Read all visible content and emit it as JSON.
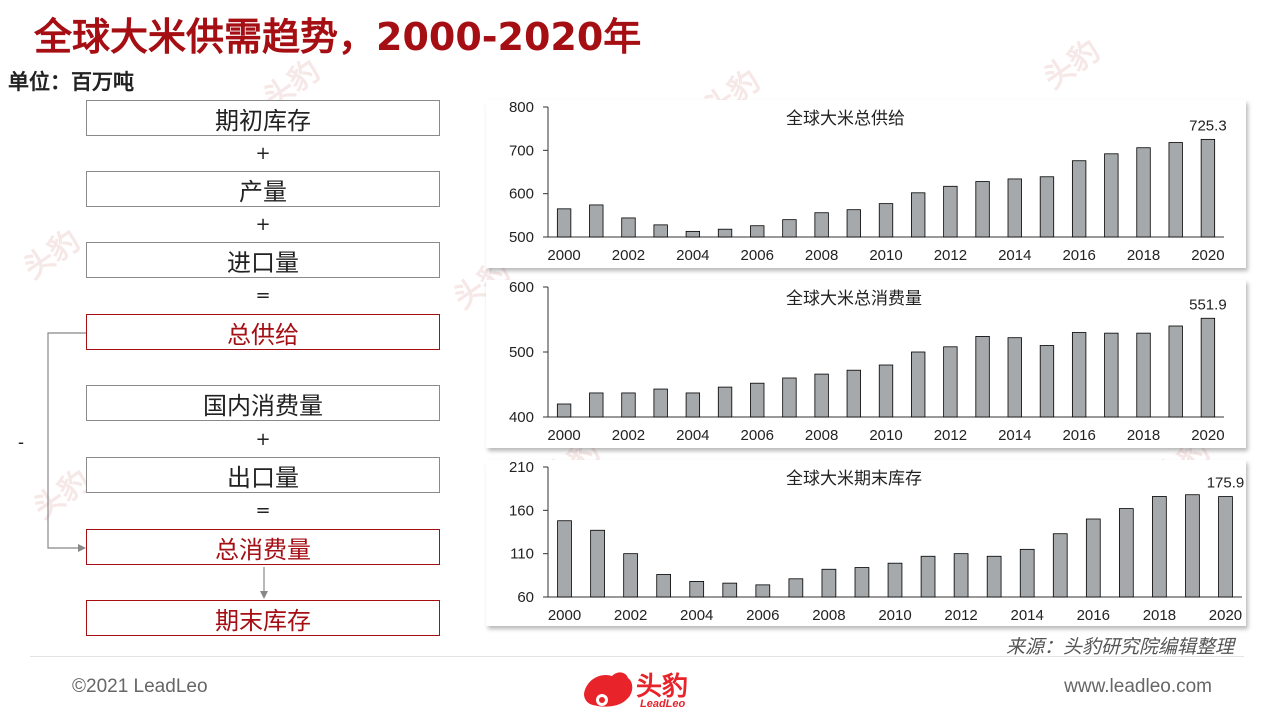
{
  "title": "全球大米供需趋势，2000-2020年",
  "unit": "单位：百万吨",
  "flow": {
    "boxes": [
      "期初库存",
      "产量",
      "进口量",
      "总供给",
      "国内消费量",
      "出口量",
      "总消费量",
      "期末库存"
    ],
    "plus": "+",
    "equals": "=",
    "minus": "-"
  },
  "source": "来源：头豹研究院编辑整理",
  "footer": {
    "copyright": "©2021 LeadLeo",
    "website": "www.leadleo.com",
    "logo_text": "头豹",
    "logo_sub": "LeadLeo",
    "watermark": "头豹"
  },
  "colors": {
    "accent": "#a50f14",
    "bar": "#a6a9ab",
    "bar_stroke": "#000000"
  },
  "chart_data": [
    {
      "type": "bar",
      "title": "全球大米总供给",
      "categories": [
        "2000",
        "2001",
        "2002",
        "2003",
        "2004",
        "2005",
        "2006",
        "2007",
        "2008",
        "2009",
        "2010",
        "2011",
        "2012",
        "2013",
        "2014",
        "2015",
        "2016",
        "2017",
        "2018",
        "2019",
        "2020"
      ],
      "values": [
        565,
        574,
        544,
        528,
        513,
        518,
        526,
        540,
        556,
        563,
        577,
        602,
        617,
        628,
        634,
        639,
        676,
        692,
        706,
        718,
        725.3
      ],
      "tick_labels": [
        "2000",
        "2002",
        "2004",
        "2006",
        "2008",
        "2010",
        "2012",
        "2014",
        "2016",
        "2018",
        "2020"
      ],
      "ylim": [
        500,
        800
      ],
      "yticks": [
        500,
        600,
        700,
        800
      ],
      "last_label": "725.3",
      "xlabel": "",
      "ylabel": ""
    },
    {
      "type": "bar",
      "title": "全球大米总消费量",
      "categories": [
        "2000",
        "2001",
        "2002",
        "2003",
        "2004",
        "2005",
        "2006",
        "2007",
        "2008",
        "2009",
        "2010",
        "2011",
        "2012",
        "2013",
        "2014",
        "2015",
        "2016",
        "2017",
        "2018",
        "2019",
        "2020"
      ],
      "values": [
        420,
        437,
        437,
        443,
        437,
        446,
        452,
        460,
        466,
        472,
        480,
        500,
        508,
        524,
        522,
        510,
        530,
        529,
        529,
        540,
        551.9
      ],
      "tick_labels": [
        "2000",
        "2002",
        "2004",
        "2006",
        "2008",
        "2010",
        "2012",
        "2014",
        "2016",
        "2018",
        "2020"
      ],
      "ylim": [
        400,
        600
      ],
      "yticks": [
        400,
        500,
        600
      ],
      "last_label": "551.9",
      "xlabel": "",
      "ylabel": ""
    },
    {
      "type": "bar",
      "title": "全球大米期末库存",
      "categories": [
        "2000",
        "2001",
        "2002",
        "2003",
        "2004",
        "2005",
        "2006",
        "2007",
        "2008",
        "2009",
        "2010",
        "2011",
        "2012",
        "2013",
        "2014",
        "2015",
        "2016",
        "2017",
        "2018",
        "2019",
        "2020"
      ],
      "values": [
        148,
        137,
        110,
        86,
        78,
        76,
        74,
        81,
        92,
        94,
        99,
        107,
        110,
        107,
        115,
        133,
        150,
        162,
        176,
        178,
        175.9
      ],
      "tick_labels": [
        "2000",
        "2002",
        "2004",
        "2006",
        "2008",
        "2010",
        "2012",
        "2014",
        "2016",
        "2018",
        "2020"
      ],
      "ylim": [
        60,
        210
      ],
      "yticks": [
        60,
        110,
        160,
        210
      ],
      "last_label": "175.9",
      "xlabel": "",
      "ylabel": ""
    }
  ]
}
